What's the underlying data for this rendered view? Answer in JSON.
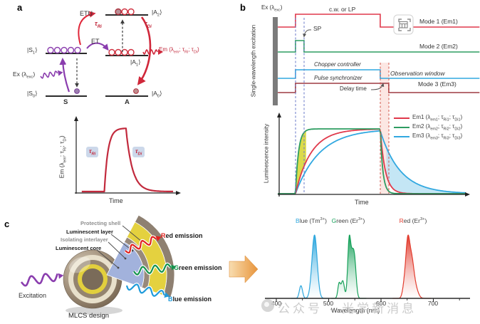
{
  "figure": {
    "panels": {
      "a": "a",
      "b": "b",
      "c": "c"
    },
    "colors": {
      "purple": "#8a3dae",
      "red": "#d0273a",
      "crimson": "#c22a3d",
      "green": "#2e9d62",
      "blue": "#31a8e0",
      "dark_red": "#9e3a42",
      "band_pink": "#f0907e",
      "dash_blue": "#6a79c8",
      "dash_red": "#d2544a"
    },
    "panel_a": {
      "levels": {
        "s1": "|S~1~⟩",
        "s0": "|S~0~⟩",
        "a2": "|A~2~⟩",
        "a1": "|A~1~⟩",
        "a0": "|A~0~⟩"
      },
      "site_s": "S",
      "site_a": "A",
      "etu": "ETU",
      "et": "ET",
      "tau_rise": "τ~Ri~",
      "tau_decay": "τ~Di~",
      "excitation": "Ex (λ~exc~)",
      "emission": "Em (λ~em~; τ~Ri~; τ~Di~)"
    },
    "panel_b": {
      "excitation": "Ex (λ~exc~)",
      "icons": {
        "mode1_capture": "table-capture-icon"
      }
    },
    "panel_c": {
      "layers": [
        "Protecting shell",
        "Luminescent layer",
        "Isolating interlayer",
        "Luminescent core"
      ],
      "excitation": "Excitation",
      "design": "MLCS design",
      "emissions": [
        {
          "first": "R",
          "rest": "ed emission",
          "color": "#e0231f"
        },
        {
          "first": "G",
          "rest": "reen emission",
          "color": "#14934d"
        },
        {
          "first": "B",
          "rest": "lue emission",
          "color": "#1f9bdb"
        }
      ]
    },
    "watermark": "公众号 · 光学新消息"
  },
  "chart_data": [
    {
      "id": "panel-a-emission-trace",
      "type": "line",
      "xlabel": "Time",
      "ylabel": "Em (λ~em~; τ~Ri~; τ~Di~)",
      "color": "#c22a3d",
      "model": {
        "t_on": 25,
        "t_off": 47,
        "tau_rise": 3.7,
        "tau_decay": 6.5,
        "amplitude": 1
      },
      "annotations": [
        "τ~Ri~",
        "τ~Di~"
      ]
    },
    {
      "id": "timing-diagram",
      "type": "step",
      "ylabel": "Single-wavelength excitation",
      "x_unit": "time (a.u.)",
      "events": {
        "excitation_on": 8,
        "sp_end": 12.6,
        "excitation_off": 53.6,
        "observation_start": 58.2
      },
      "annotations": {
        "observation": "Observation window",
        "delay": "Delay time"
      },
      "series": [
        {
          "name": "Mode 1 (Em1)",
          "label": "c.w. or LP",
          "color": "#e0394b",
          "points": [
            [
              -1.5,
              0
            ],
            [
              8,
              1
            ],
            [
              53.6,
              0
            ],
            [
              107,
              0
            ]
          ]
        },
        {
          "name": "Mode 2 (Em2)",
          "label": "SP",
          "color": "#2e9d62",
          "points": [
            [
              -1.5,
              0
            ],
            [
              8,
              1
            ],
            [
              12.6,
              0
            ],
            [
              107,
              0
            ]
          ]
        },
        {
          "name": "Chopper controller",
          "color": "#31a8e0",
          "points": [
            [
              -1.5,
              0
            ],
            [
              8,
              1
            ],
            [
              53.6,
              0
            ],
            [
              107,
              0
            ]
          ]
        },
        {
          "name": "Mode 3 (Em3)",
          "label": "Pulse synchronizer",
          "color": "#9e3a42",
          "points": [
            [
              -1.5,
              0
            ],
            [
              8,
              1
            ],
            [
              58.2,
              0
            ],
            [
              107,
              0
            ]
          ]
        }
      ]
    },
    {
      "id": "luminescence-kinetics",
      "type": "line",
      "xlabel": "Time",
      "ylabel": "Luminescence intensity",
      "t_on": 8,
      "t_off": 53.6,
      "series": [
        {
          "name": "Em1 (λ~em1~; τ~Ri1~; τ~Di1~)",
          "color": "#e0394b",
          "tau_rise": 8.4,
          "tau_decay": 2.7
        },
        {
          "name": "Em2 (λ~em2~; τ~Ri2~; τ~Di2~)",
          "color": "#2e9d62",
          "tau_rise": 1.6,
          "tau_decay": 1.4
        },
        {
          "name": "Em3 (λ~em3~; τ~Ri3~; τ~Di3~)",
          "color": "#31a8e0",
          "tau_rise": 13,
          "tau_decay": 10.7
        }
      ],
      "fills": {
        "rise_gap": "#d5d32c",
        "decay_tail": "#b5e0f2"
      }
    },
    {
      "id": "emission-spectra",
      "type": "area",
      "xlabel": "Wavelength (nm)",
      "x_ticks": [
        400,
        500,
        600,
        700
      ],
      "x_minor_step": 50,
      "series": [
        {
          "name": "Blue (Tm^3+^)",
          "title_first": "B",
          "title_rest": "lue (Tm^3+^)",
          "color": "#2ea7de",
          "range": [
            428,
            500
          ],
          "peaks": [
            [
              447,
              0.2,
              3
            ],
            [
              473,
              1.0,
              5.0
            ]
          ]
        },
        {
          "name": "Green (Er^3+^)",
          "title_first": "G",
          "title_rest": "reen (Er^3+^)",
          "color": "#17a15a",
          "range": [
            505,
            572
          ],
          "peaks": [
            [
              520,
              0.28,
              2.5
            ],
            [
              527,
              0.33,
              3
            ],
            [
              539,
              1.0,
              2.8
            ],
            [
              545,
              0.72,
              3.5
            ],
            [
              550,
              0.52,
              3
            ]
          ]
        },
        {
          "name": "Red (Er^3+^)",
          "title_first": "R",
          "title_rest": "ed (Er^3+^)",
          "color": "#e23c2e",
          "range": [
            622,
            695
          ],
          "peaks": [
            [
              645,
              0.3,
              3.5
            ],
            [
              651,
              1.0,
              3.5
            ],
            [
              658,
              0.78,
              4.5
            ],
            [
              666,
              0.2,
              5
            ]
          ]
        }
      ]
    }
  ]
}
